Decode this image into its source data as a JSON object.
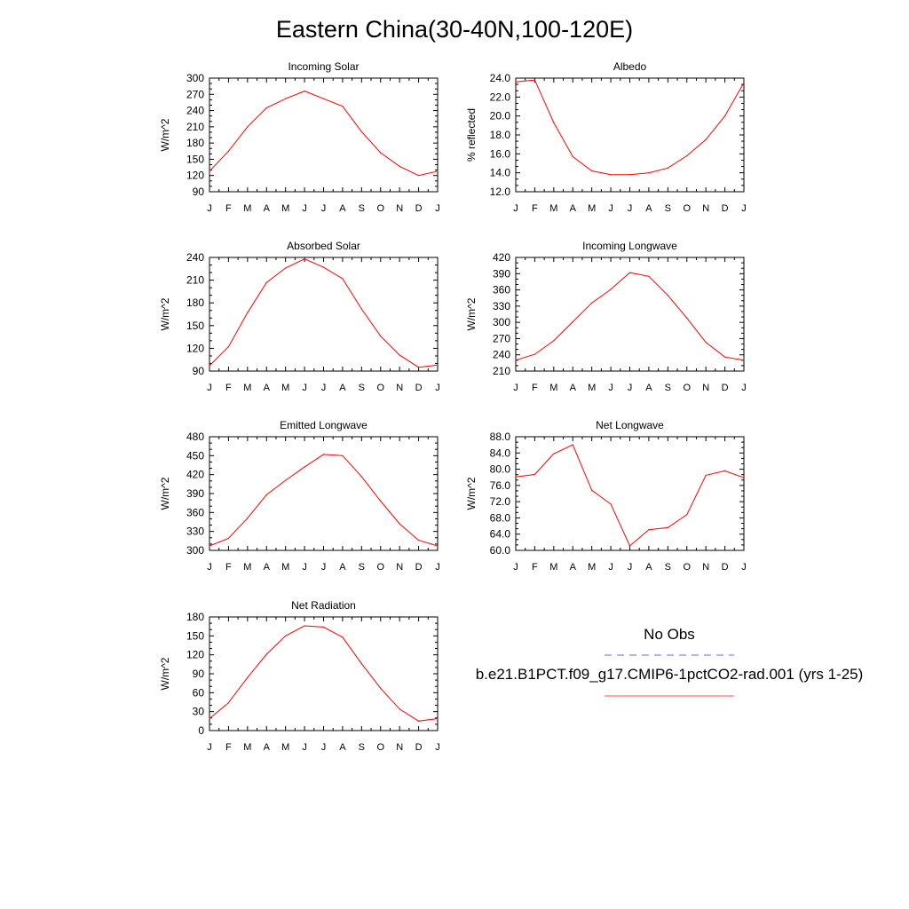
{
  "title": "Eastern China(30-40N,100-120E)",
  "colors": {
    "model": "#ff0000",
    "obs": "#0000ff",
    "axis": "#000000"
  },
  "legend": {
    "obs_label": "No Obs",
    "model_label": "b.e21.B1PCT.f09_g17.CMIP6-1pctCO2-rad.001 (yrs 1-25)"
  },
  "chart_data": [
    {
      "type": "line",
      "title": "Incoming Solar",
      "ylabel": "W/m^2",
      "x": [
        "J",
        "F",
        "M",
        "A",
        "M",
        "J",
        "J",
        "A",
        "S",
        "O",
        "N",
        "D",
        "J"
      ],
      "ylim": [
        90,
        300
      ],
      "yticks": [
        "90",
        "120",
        "150",
        "180",
        "210",
        "240",
        "270",
        "300"
      ],
      "series": [
        {
          "values": [
            128,
            165,
            210,
            245,
            262,
            276,
            262,
            248,
            201,
            162,
            137,
            120,
            128
          ]
        }
      ]
    },
    {
      "type": "line",
      "title": "Albedo",
      "ylabel": "% reflected",
      "x": [
        "J",
        "F",
        "M",
        "A",
        "M",
        "J",
        "J",
        "A",
        "S",
        "O",
        "N",
        "D",
        "J"
      ],
      "ylim": [
        12,
        24
      ],
      "yticks": [
        "12.0",
        "14.0",
        "16.0",
        "18.0",
        "20.0",
        "22.0",
        "24.0"
      ],
      "series": [
        {
          "values": [
            23.6,
            23.8,
            19.3,
            15.7,
            14.2,
            13.8,
            13.8,
            14.0,
            14.5,
            15.8,
            17.5,
            20.0,
            23.5
          ]
        }
      ]
    },
    {
      "type": "line",
      "title": "Absorbed Solar",
      "ylabel": "W/m^2",
      "x": [
        "J",
        "F",
        "M",
        "A",
        "M",
        "J",
        "J",
        "A",
        "S",
        "O",
        "N",
        "D",
        "J"
      ],
      "ylim": [
        90,
        240
      ],
      "yticks": [
        "90",
        "120",
        "150",
        "180",
        "210",
        "240"
      ],
      "series": [
        {
          "values": [
            97,
            122,
            167,
            207,
            226,
            238,
            227,
            212,
            172,
            136,
            111,
            95,
            98
          ]
        }
      ]
    },
    {
      "type": "line",
      "title": "Incoming Longwave",
      "ylabel": "W/m^2",
      "x": [
        "J",
        "F",
        "M",
        "A",
        "M",
        "J",
        "J",
        "A",
        "S",
        "O",
        "N",
        "D",
        "J"
      ],
      "ylim": [
        210,
        420
      ],
      "yticks": [
        "210",
        "240",
        "270",
        "300",
        "330",
        "360",
        "390",
        "420"
      ],
      "series": [
        {
          "values": [
            230,
            241,
            266,
            301,
            336,
            361,
            392,
            385,
            350,
            308,
            263,
            236,
            230
          ]
        }
      ]
    },
    {
      "type": "line",
      "title": "Emitted Longwave",
      "ylabel": "W/m^2",
      "x": [
        "J",
        "F",
        "M",
        "A",
        "M",
        "J",
        "J",
        "A",
        "S",
        "O",
        "N",
        "D",
        "J"
      ],
      "ylim": [
        300,
        480
      ],
      "yticks": [
        "300",
        "330",
        "360",
        "390",
        "420",
        "450",
        "480"
      ],
      "series": [
        {
          "values": [
            307,
            319,
            351,
            388,
            411,
            432,
            452,
            450,
            417,
            378,
            342,
            316,
            307
          ]
        }
      ]
    },
    {
      "type": "line",
      "title": "Net Longwave",
      "ylabel": "W/m^2",
      "x": [
        "J",
        "F",
        "M",
        "A",
        "M",
        "J",
        "J",
        "A",
        "S",
        "O",
        "N",
        "D",
        "J"
      ],
      "ylim": [
        60,
        88
      ],
      "yticks": [
        "60.0",
        "64.0",
        "68.0",
        "72.0",
        "76.0",
        "80.0",
        "84.0",
        "88.0"
      ],
      "series": [
        {
          "values": [
            78.1,
            78.7,
            83.8,
            86.0,
            74.8,
            71.4,
            61.1,
            65.1,
            65.6,
            68.8,
            78.5,
            79.6,
            77.9
          ]
        }
      ]
    },
    {
      "type": "line",
      "title": "Net Radiation",
      "ylabel": "W/m^2",
      "x": [
        "J",
        "F",
        "M",
        "A",
        "M",
        "J",
        "J",
        "A",
        "S",
        "O",
        "N",
        "D",
        "J"
      ],
      "ylim": [
        0,
        180
      ],
      "yticks": [
        "0",
        "30",
        "60",
        "90",
        "120",
        "150",
        "180"
      ],
      "series": [
        {
          "values": [
            19,
            44,
            84,
            121,
            150,
            166,
            164,
            148,
            106,
            67,
            34,
            15,
            19
          ]
        }
      ]
    }
  ]
}
